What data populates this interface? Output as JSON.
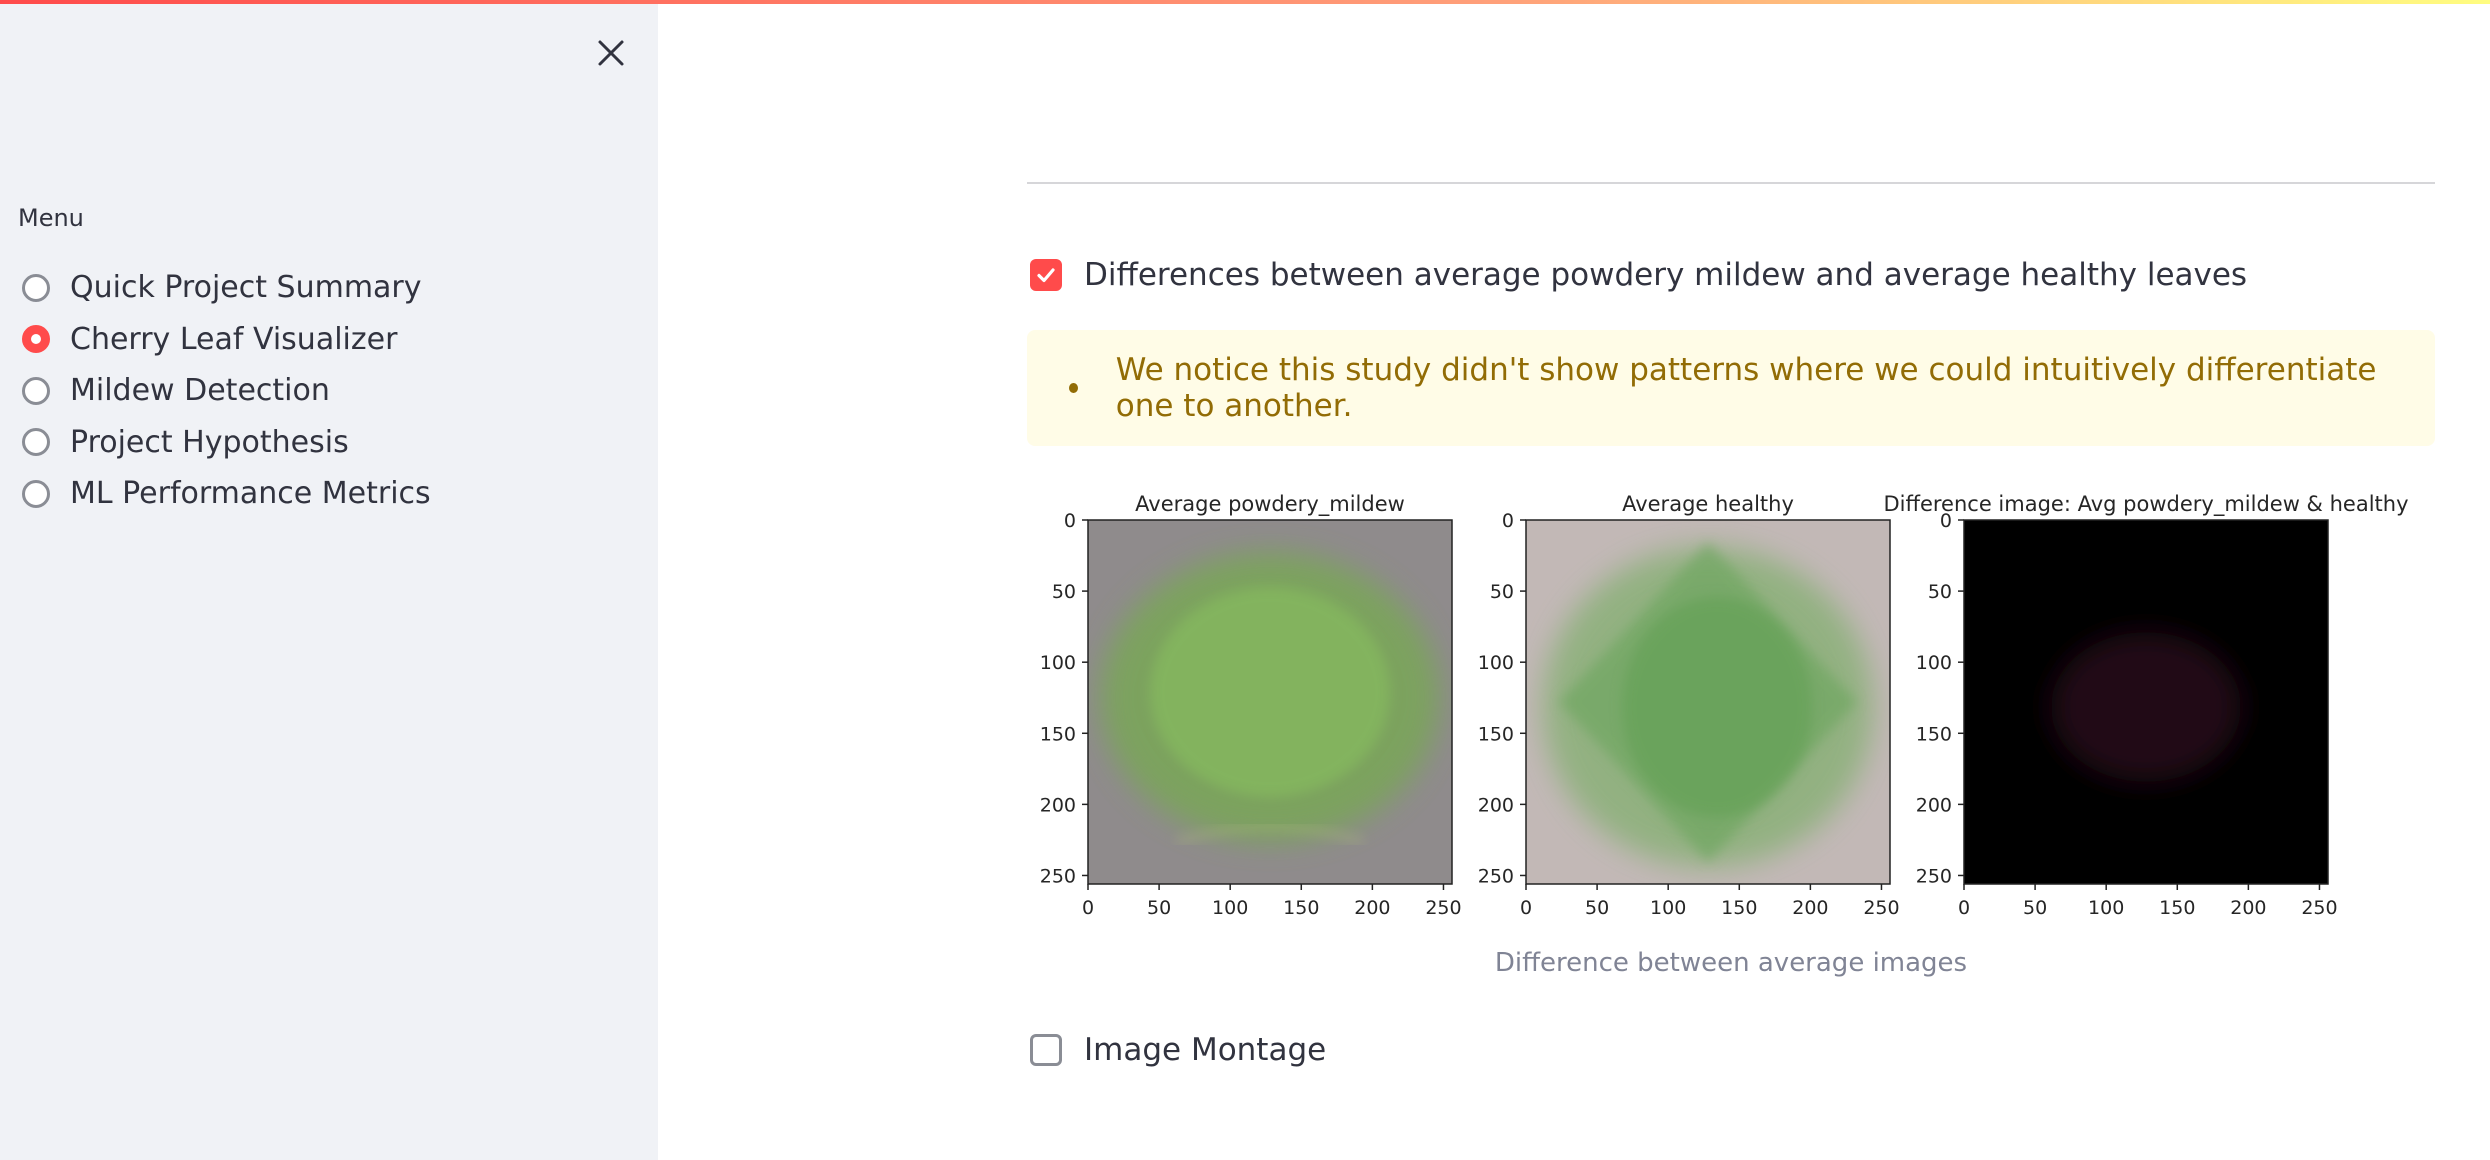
{
  "sidebar": {
    "menu_label": "Menu",
    "items": [
      {
        "label": "Quick Project Summary",
        "selected": false
      },
      {
        "label": "Cherry Leaf Visualizer",
        "selected": true
      },
      {
        "label": "Mildew Detection",
        "selected": false
      },
      {
        "label": "Project Hypothesis",
        "selected": false
      },
      {
        "label": "ML Performance Metrics",
        "selected": false
      }
    ]
  },
  "main": {
    "diff_checkbox": {
      "label": "Differences between average powdery mildew and average healthy leaves",
      "checked": true
    },
    "info_alert": {
      "text": "We notice this study didn't show patterns where we could intuitively differentiate one to another."
    },
    "figure": {
      "panels": [
        {
          "title": "Average powdery_mildew"
        },
        {
          "title": "Average healthy"
        },
        {
          "title": "Difference image: Avg powdery_mildew & healthy"
        }
      ],
      "y_ticks": [
        "0",
        "50",
        "100",
        "150",
        "200",
        "250"
      ],
      "x_ticks": [
        "0",
        "50",
        "100",
        "150",
        "200",
        "250"
      ]
    },
    "figure_caption": "Difference between average images",
    "montage_checkbox": {
      "label": "Image Montage",
      "checked": false
    }
  },
  "colors": {
    "accent": "#ff4b4b",
    "warning_text": "#926c05",
    "warning_bg": "#fffce7",
    "sidebar_bg": "#f0f2f6"
  },
  "icons": {
    "close": "close-icon",
    "check": "check-icon"
  }
}
